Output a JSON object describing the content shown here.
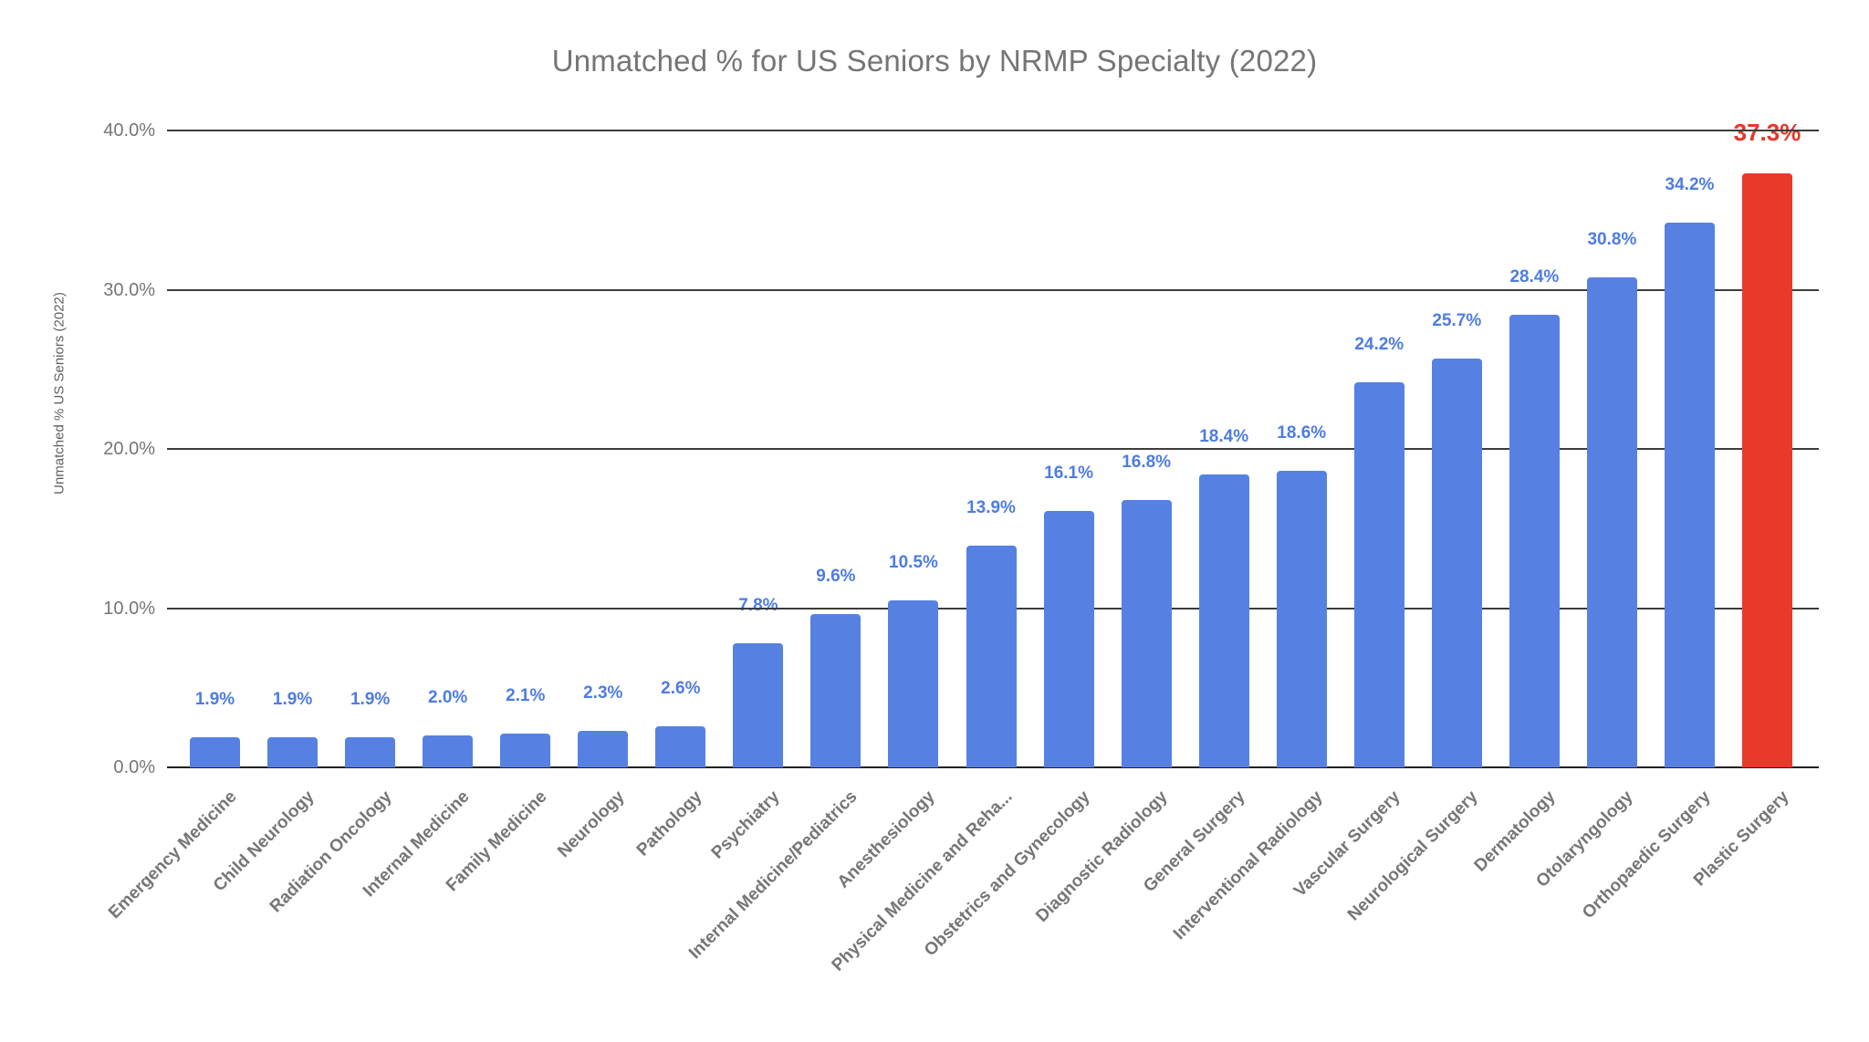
{
  "chart_data": {
    "type": "bar",
    "title": "Unmatched % for US Seniors by NRMP Specialty (2022)",
    "xlabel": "",
    "ylabel": "Unmatched % US Seniors (2022)",
    "ylim": [
      0,
      40
    ],
    "grid": true,
    "legend_position": "none",
    "yticks": [
      {
        "value": 40,
        "label": "40.0%"
      },
      {
        "value": 30,
        "label": "30.0%"
      },
      {
        "value": 20,
        "label": "20.0%"
      },
      {
        "value": 10,
        "label": "10.0%"
      },
      {
        "value": 0,
        "label": "0.0%"
      }
    ],
    "categories": [
      "Emergency Medicine",
      "Child Neurology",
      "Radiation Oncology",
      "Internal Medicine",
      "Family Medicine",
      "Neurology",
      "Pathology",
      "Psychiatry",
      "Internal Medicine/Pediatrics",
      "Anesthesiology",
      "Physical Medicine and Reha...",
      "Obstetrics and Gynecology",
      "Diagnostic Radiology",
      "General Surgery",
      "Interventional Radiology",
      "Vascular Surgery",
      "Neurological Surgery",
      "Dermatology",
      "Otolaryngology",
      "Orthopaedic Surgery",
      "Plastic Surgery"
    ],
    "values": [
      1.9,
      1.9,
      1.9,
      2.0,
      2.1,
      2.3,
      2.6,
      7.8,
      9.6,
      10.5,
      13.9,
      16.1,
      16.8,
      18.4,
      18.6,
      24.2,
      25.7,
      28.4,
      30.8,
      34.2,
      37.3
    ],
    "data_labels": [
      "1.9%",
      "1.9%",
      "1.9%",
      "2.0%",
      "2.1%",
      "2.3%",
      "2.6%",
      "7.8%",
      "9.6%",
      "10.5%",
      "13.9%",
      "16.1%",
      "16.8%",
      "18.4%",
      "18.6%",
      "24.2%",
      "25.7%",
      "28.4%",
      "30.8%",
      "34.2%",
      "37.3%"
    ],
    "highlight_index": 20,
    "colors": {
      "bar": "#5681E2",
      "bar_highlight": "#E8392B",
      "value_label": "#4D7CE2",
      "value_label_highlight": "#E5372B",
      "gridline": "#3C3C3C",
      "baseline": "#212121",
      "axis_text": "#757575",
      "title_text": "#757575"
    }
  }
}
